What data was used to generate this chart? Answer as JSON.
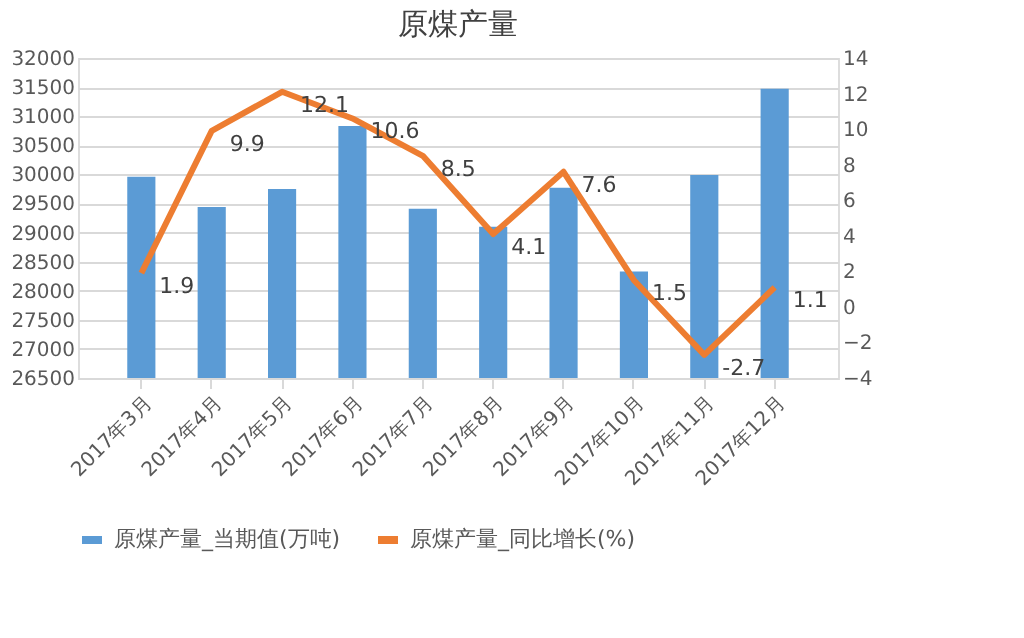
{
  "chart_data": {
    "type": "bar",
    "title": "原煤产量",
    "categories": [
      "2017年3月",
      "2017年4月",
      "2017年5月",
      "2017年6月",
      "2017年7月",
      "2017年8月",
      "2017年9月",
      "2017年10月",
      "2017年11月",
      "2017年12月"
    ],
    "series": [
      {
        "name": "原煤产量_当期值(万吨)",
        "type": "bar",
        "color": "#5b9bd5",
        "values": [
          29960,
          29440,
          29750,
          30830,
          29410,
          29100,
          29770,
          28330,
          29990,
          31470
        ]
      },
      {
        "name": "原煤产量_同比增长(%)",
        "type": "line",
        "axis": "y2",
        "color": "#ed7d31",
        "values": [
          1.9,
          9.9,
          12.1,
          10.6,
          8.5,
          4.1,
          7.6,
          1.5,
          -2.7,
          1.1
        ],
        "value_labels": [
          "1.9",
          "9.9",
          "12.1",
          "10.6",
          "8.5",
          "4.1",
          "7.6",
          "1.5",
          "-2.7",
          "1.1"
        ]
      }
    ],
    "ylim": [
      26500,
      32000
    ],
    "yticks": [
      26500,
      27000,
      27500,
      28000,
      28500,
      29000,
      29500,
      30000,
      30500,
      31000,
      31500,
      32000
    ],
    "y2lim": [
      -4,
      14
    ],
    "y2ticks": [
      -4,
      -2,
      0,
      2,
      4,
      6,
      8,
      10,
      12,
      14
    ],
    "grid": "y",
    "legend": "bottom",
    "marker": "none",
    "line_style": "solid"
  }
}
